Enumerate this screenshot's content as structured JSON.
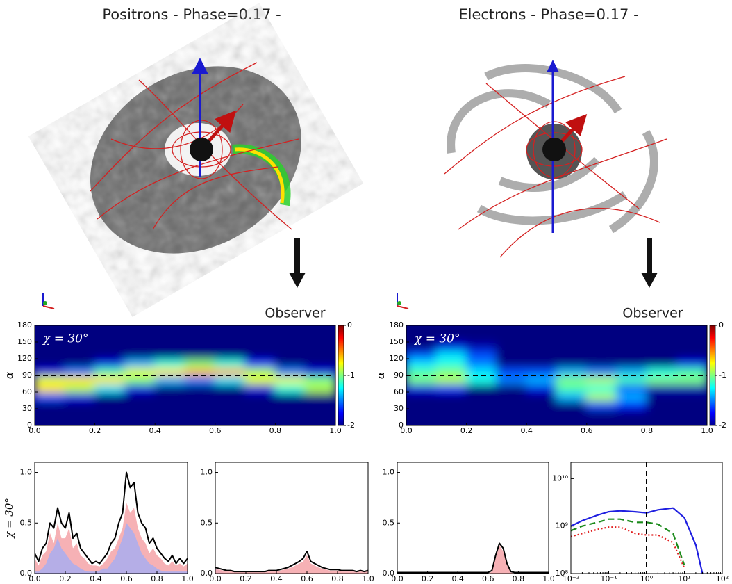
{
  "header": {
    "left_title": "Positrons - Phase=0.17 -",
    "right_title": "Electrons - Phase=0.17 -",
    "left_observer": "Observer",
    "right_observer": "Observer"
  },
  "chart_data": [
    {
      "type": "heatmap",
      "annotation": "χ = 30°",
      "ylabel": "α",
      "x": [
        0.05,
        0.15,
        0.25,
        0.35,
        0.45,
        0.55,
        0.65,
        0.75,
        0.85,
        0.95
      ],
      "y": [
        7.5,
        22.5,
        37.5,
        52.5,
        67.5,
        82.5,
        97.5,
        112.5,
        127.5,
        142.5,
        157.5,
        172.5
      ],
      "z": [
        [
          -2,
          -2,
          -2,
          -2,
          -2,
          -2,
          -2,
          -2,
          -2,
          -2
        ],
        [
          -2,
          -2,
          -2,
          -2,
          -2,
          -2,
          -2,
          -2,
          -2,
          -2
        ],
        [
          -2,
          -2,
          -2,
          -2,
          -2,
          -2,
          -2,
          -2,
          -2,
          -2
        ],
        [
          -1.6,
          -1.8,
          -2,
          -2,
          -2,
          -2,
          -2,
          -2,
          -2,
          -2
        ],
        [
          -0.7,
          -0.9,
          -1.3,
          -1.8,
          -2,
          -2,
          -2,
          -1.8,
          -1.2,
          -0.9
        ],
        [
          -0.8,
          -0.7,
          -0.7,
          -1.0,
          -1.4,
          -1.5,
          -1.3,
          -0.8,
          -0.8,
          -1.0
        ],
        [
          -1.8,
          -1.5,
          -1.1,
          -0.8,
          -0.7,
          -0.6,
          -0.6,
          -0.9,
          -1.5,
          -1.8
        ],
        [
          -2,
          -2,
          -1.8,
          -1.4,
          -1.2,
          -1.0,
          -1.2,
          -1.7,
          -2,
          -2
        ],
        [
          -2,
          -2,
          -2,
          -2,
          -2,
          -2,
          -2,
          -2,
          -2,
          -2
        ],
        [
          -2,
          -2,
          -2,
          -2,
          -2,
          -2,
          -2,
          -2,
          -2,
          -2
        ],
        [
          -2,
          -2,
          -2,
          -2,
          -2,
          -2,
          -2,
          -2,
          -2,
          -2
        ],
        [
          -2,
          -2,
          -2,
          -2,
          -2,
          -2,
          -2,
          -2,
          -2,
          -2
        ]
      ],
      "clim": [
        -2,
        0
      ],
      "cticks": [
        -2,
        -1,
        0
      ],
      "hline": 90,
      "xlim": [
        0,
        1
      ],
      "xticks": [
        {
          "value": 0,
          "label": "0.0"
        },
        0.2,
        0.4,
        0.6,
        0.8,
        {
          "value": 1,
          "label": "1.0"
        }
      ],
      "ylim": [
        0,
        180
      ],
      "yticks": [
        0,
        30,
        60,
        90,
        120,
        150,
        180
      ]
    },
    {
      "type": "heatmap",
      "annotation": "χ = 30°",
      "ylabel": "α",
      "x": [
        0.05,
        0.15,
        0.25,
        0.35,
        0.45,
        0.55,
        0.65,
        0.75,
        0.85,
        0.95
      ],
      "y": [
        7.5,
        22.5,
        37.5,
        52.5,
        67.5,
        82.5,
        97.5,
        112.5,
        127.5,
        142.5,
        157.5,
        172.5
      ],
      "z": [
        [
          -2,
          -2,
          -2,
          -2,
          -2,
          -2,
          -2,
          -2,
          -2,
          -2
        ],
        [
          -2,
          -2,
          -2,
          -2,
          -2,
          -2,
          -2,
          -2,
          -2,
          -2
        ],
        [
          -2,
          -2,
          -2,
          -2,
          -2,
          -2,
          -1.6,
          -1.7,
          -2,
          -2
        ],
        [
          -2,
          -2,
          -2,
          -2,
          -2,
          -1.4,
          -0.9,
          -1.4,
          -2,
          -2
        ],
        [
          -1.8,
          -1.7,
          -2,
          -2,
          -1.8,
          -1.1,
          -1.2,
          -1.6,
          -1.9,
          -1.9
        ],
        [
          -1.0,
          -0.9,
          -1.2,
          -1.5,
          -1.4,
          -1.0,
          -0.9,
          -1.1,
          -1.0,
          -1.0
        ],
        [
          -1.1,
          -1.0,
          -1.3,
          -1.6,
          -1.6,
          -1.4,
          -1.5,
          -1.4,
          -1.2,
          -1.1
        ],
        [
          -1.3,
          -1.2,
          -1.5,
          -2,
          -2,
          -2,
          -2,
          -2,
          -2,
          -1.8
        ],
        [
          -1.6,
          -1.3,
          -1.6,
          -2,
          -2,
          -2,
          -2,
          -2,
          -2,
          -2
        ],
        [
          -2,
          -1.8,
          -1.9,
          -2,
          -2,
          -2,
          -2,
          -2,
          -2,
          -2
        ],
        [
          -2,
          -2,
          -2,
          -2,
          -2,
          -2,
          -2,
          -2,
          -2,
          -2
        ],
        [
          -2,
          -2,
          -2,
          -2,
          -2,
          -2,
          -2,
          -2,
          -2,
          -2
        ]
      ],
      "clim": [
        -2,
        0
      ],
      "cticks": [
        -2,
        -1,
        0
      ],
      "hline": 90,
      "xlim": [
        0,
        1
      ],
      "xticks": [
        {
          "value": 0,
          "label": "0.0"
        },
        0.2,
        0.4,
        0.6,
        0.8,
        {
          "value": 1,
          "label": "1.0"
        }
      ],
      "ylim": [
        0,
        180
      ],
      "yticks": [
        0,
        30,
        60,
        90,
        120,
        150,
        180
      ]
    },
    {
      "type": "line",
      "ylabel": "χ = 30°",
      "x": [
        0,
        0.025,
        0.05,
        0.075,
        0.1,
        0.125,
        0.15,
        0.175,
        0.2,
        0.225,
        0.25,
        0.275,
        0.3,
        0.325,
        0.35,
        0.375,
        0.4,
        0.425,
        0.45,
        0.475,
        0.5,
        0.525,
        0.55,
        0.575,
        0.6,
        0.625,
        0.65,
        0.675,
        0.7,
        0.725,
        0.75,
        0.775,
        0.8,
        0.825,
        0.85,
        0.875,
        0.9,
        0.925,
        0.95,
        0.975,
        1.0
      ],
      "series": [
        {
          "color": "#f4a3a8",
          "fill": true,
          "values": [
            0.15,
            0.08,
            0.18,
            0.22,
            0.4,
            0.3,
            0.5,
            0.35,
            0.35,
            0.45,
            0.25,
            0.3,
            0.18,
            0.15,
            0.1,
            0.08,
            0.08,
            0.07,
            0.1,
            0.15,
            0.22,
            0.25,
            0.35,
            0.45,
            0.7,
            0.6,
            0.65,
            0.45,
            0.35,
            0.3,
            0.2,
            0.25,
            0.18,
            0.15,
            0.1,
            0.08,
            0.12,
            0.08,
            0.1,
            0.07,
            0.1
          ]
        },
        {
          "color": "#a9aef0",
          "fill": true,
          "values": [
            0.02,
            0.02,
            0.05,
            0.1,
            0.2,
            0.25,
            0.35,
            0.25,
            0.2,
            0.15,
            0.1,
            0.08,
            0.05,
            0.03,
            0.02,
            0.02,
            0.02,
            0.03,
            0.05,
            0.05,
            0.1,
            0.15,
            0.25,
            0.35,
            0.5,
            0.45,
            0.4,
            0.3,
            0.2,
            0.15,
            0.1,
            0.08,
            0.05,
            0.03,
            0.02,
            0.02,
            0.02,
            0.02,
            0.02,
            0.02,
            0.02
          ]
        },
        {
          "color": "#000000",
          "fill": false,
          "values": [
            0.2,
            0.12,
            0.25,
            0.3,
            0.5,
            0.45,
            0.65,
            0.5,
            0.45,
            0.6,
            0.35,
            0.4,
            0.25,
            0.2,
            0.15,
            0.1,
            0.12,
            0.1,
            0.15,
            0.2,
            0.3,
            0.35,
            0.5,
            0.6,
            1.0,
            0.85,
            0.9,
            0.6,
            0.5,
            0.45,
            0.3,
            0.35,
            0.25,
            0.2,
            0.15,
            0.12,
            0.18,
            0.1,
            0.15,
            0.1,
            0.15
          ]
        }
      ],
      "xlim": [
        0,
        1
      ],
      "xticks": [
        {
          "value": 0,
          "label": "0.0"
        },
        0.2,
        0.4,
        0.6,
        0.8,
        {
          "value": 1,
          "label": "1.0"
        }
      ],
      "ylim": [
        0,
        1.1
      ],
      "yticks": [
        {
          "value": 0,
          "label": "0.0"
        },
        0.5,
        {
          "value": 1,
          "label": "1.0"
        }
      ]
    },
    {
      "type": "line",
      "x": [
        0,
        0.025,
        0.05,
        0.075,
        0.1,
        0.125,
        0.15,
        0.175,
        0.2,
        0.225,
        0.25,
        0.275,
        0.3,
        0.325,
        0.35,
        0.375,
        0.4,
        0.425,
        0.45,
        0.475,
        0.5,
        0.525,
        0.55,
        0.575,
        0.6,
        0.625,
        0.65,
        0.675,
        0.7,
        0.725,
        0.75,
        0.775,
        0.8,
        0.825,
        0.85,
        0.875,
        0.9,
        0.925,
        0.95,
        0.975,
        1.0
      ],
      "series": [
        {
          "color": "#a9aef0",
          "fill": true,
          "values": [
            0.05,
            0.03,
            0.01,
            0,
            0,
            0,
            0,
            0,
            0,
            0,
            0,
            0,
            0,
            0,
            0,
            0,
            0,
            0,
            0,
            0,
            0,
            0,
            0,
            0,
            0,
            0,
            0,
            0,
            0,
            0,
            0,
            0,
            0,
            0,
            0,
            0,
            0,
            0,
            0,
            0,
            0
          ]
        },
        {
          "color": "#f4a3a8",
          "fill": true,
          "values": [
            0.04,
            0.04,
            0.03,
            0.02,
            0.02,
            0.02,
            0.02,
            0.02,
            0.02,
            0.02,
            0.02,
            0.02,
            0.02,
            0.02,
            0.02,
            0.02,
            0.02,
            0.03,
            0.04,
            0.05,
            0.06,
            0.08,
            0.1,
            0.12,
            0.18,
            0.1,
            0.08,
            0.06,
            0.05,
            0.04,
            0.03,
            0.03,
            0.03,
            0.02,
            0.02,
            0.02,
            0.02,
            0.02,
            0.02,
            0.02,
            0.02
          ]
        },
        {
          "color": "#000000",
          "fill": false,
          "values": [
            0.06,
            0.05,
            0.04,
            0.03,
            0.03,
            0.02,
            0.02,
            0.02,
            0.02,
            0.02,
            0.02,
            0.02,
            0.02,
            0.02,
            0.03,
            0.03,
            0.03,
            0.04,
            0.05,
            0.06,
            0.08,
            0.1,
            0.12,
            0.15,
            0.22,
            0.12,
            0.1,
            0.08,
            0.06,
            0.05,
            0.04,
            0.04,
            0.04,
            0.03,
            0.03,
            0.03,
            0.03,
            0.02,
            0.03,
            0.02,
            0.03
          ]
        }
      ],
      "xlim": [
        0,
        1
      ],
      "xticks": [
        {
          "value": 0,
          "label": "0.0"
        },
        0.2,
        0.4,
        0.6,
        0.8,
        {
          "value": 1,
          "label": "1.0"
        }
      ],
      "ylim": [
        0,
        1.1
      ],
      "yticks": [
        {
          "value": 0,
          "label": "0.0"
        },
        0.5,
        {
          "value": 1,
          "label": "1.0"
        }
      ]
    },
    {
      "type": "line",
      "x": [
        0,
        0.025,
        0.05,
        0.075,
        0.1,
        0.125,
        0.15,
        0.175,
        0.2,
        0.225,
        0.25,
        0.275,
        0.3,
        0.325,
        0.35,
        0.375,
        0.4,
        0.425,
        0.45,
        0.475,
        0.5,
        0.525,
        0.55,
        0.575,
        0.6,
        0.625,
        0.65,
        0.675,
        0.7,
        0.725,
        0.75,
        0.775,
        0.8,
        0.825,
        0.85,
        0.875,
        0.9,
        0.925,
        0.95,
        0.975,
        1.0
      ],
      "series": [
        {
          "color": "#f4a3a8",
          "fill": true,
          "values": [
            0,
            0,
            0,
            0,
            0,
            0,
            0,
            0,
            0,
            0,
            0,
            0,
            0,
            0,
            0,
            0,
            0,
            0,
            0,
            0,
            0,
            0,
            0,
            0,
            0,
            0.02,
            0.15,
            0.28,
            0.22,
            0.08,
            0.01,
            0,
            0,
            0,
            0,
            0,
            0,
            0,
            0,
            0,
            0
          ]
        },
        {
          "color": "#000000",
          "fill": false,
          "values": [
            0.01,
            0.01,
            0.01,
            0.01,
            0.01,
            0.01,
            0.01,
            0.01,
            0.01,
            0.01,
            0.01,
            0.01,
            0.01,
            0.01,
            0.01,
            0.01,
            0.01,
            0.01,
            0.01,
            0.01,
            0.01,
            0.01,
            0.01,
            0.01,
            0.01,
            0.03,
            0.18,
            0.3,
            0.25,
            0.1,
            0.02,
            0.01,
            0.01,
            0.01,
            0.01,
            0.01,
            0.01,
            0.01,
            0.01,
            0.01,
            0.01
          ]
        }
      ],
      "xlim": [
        0,
        1
      ],
      "xticks": [
        {
          "value": 0,
          "label": "0.0"
        },
        0.2,
        0.4,
        0.6,
        0.8,
        {
          "value": 1,
          "label": "1.0"
        }
      ],
      "ylim": [
        0,
        1.1
      ],
      "yticks": [
        {
          "value": 0,
          "label": "0.0"
        },
        0.5,
        {
          "value": 1,
          "label": "1.0"
        }
      ]
    },
    {
      "type": "line",
      "log_x": true,
      "log_y": true,
      "vline": 1,
      "x": [
        0.01,
        0.02,
        0.05,
        0.1,
        0.2,
        0.5,
        1,
        2,
        5,
        10,
        20,
        30
      ],
      "series": [
        {
          "color": "#1f1fe0",
          "dash": "",
          "values": [
            1000000000.0,
            1300000000.0,
            1700000000.0,
            2000000000.0,
            2100000000.0,
            2000000000.0,
            1900000000.0,
            2200000000.0,
            2400000000.0,
            1500000000.0,
            400000000.0,
            100000000.0
          ]
        },
        {
          "color": "#1a8a1a",
          "dash": "9,5",
          "values": [
            800000000.0,
            1000000000.0,
            1200000000.0,
            1400000000.0,
            1400000000.0,
            1200000000.0,
            1200000000.0,
            1100000000.0,
            700000000.0,
            150000000.0,
            null,
            null
          ]
        },
        {
          "color": "#e02020",
          "dash": "2,3",
          "values": [
            600000000.0,
            700000000.0,
            850000000.0,
            950000000.0,
            950000000.0,
            700000000.0,
            650000000.0,
            650000000.0,
            450000000.0,
            130000000.0,
            null,
            null
          ]
        }
      ],
      "xlim": [
        0.01,
        100
      ],
      "xticks": [
        {
          "value": 0.01,
          "label": "10⁻²"
        },
        {
          "value": 0.1,
          "label": "10⁻¹"
        },
        {
          "value": 1,
          "label": "10⁰"
        },
        {
          "value": 10,
          "label": "10¹"
        },
        {
          "value": 100,
          "label": "10²"
        }
      ],
      "ylim": [
        100000000.0,
        22000000000.0
      ],
      "yticks": [
        {
          "value": 100000000.0,
          "label": "10⁸"
        },
        {
          "value": 1000000000.0,
          "label": "10⁹"
        },
        {
          "value": 10000000000.0,
          "label": "10¹⁰"
        }
      ]
    }
  ]
}
